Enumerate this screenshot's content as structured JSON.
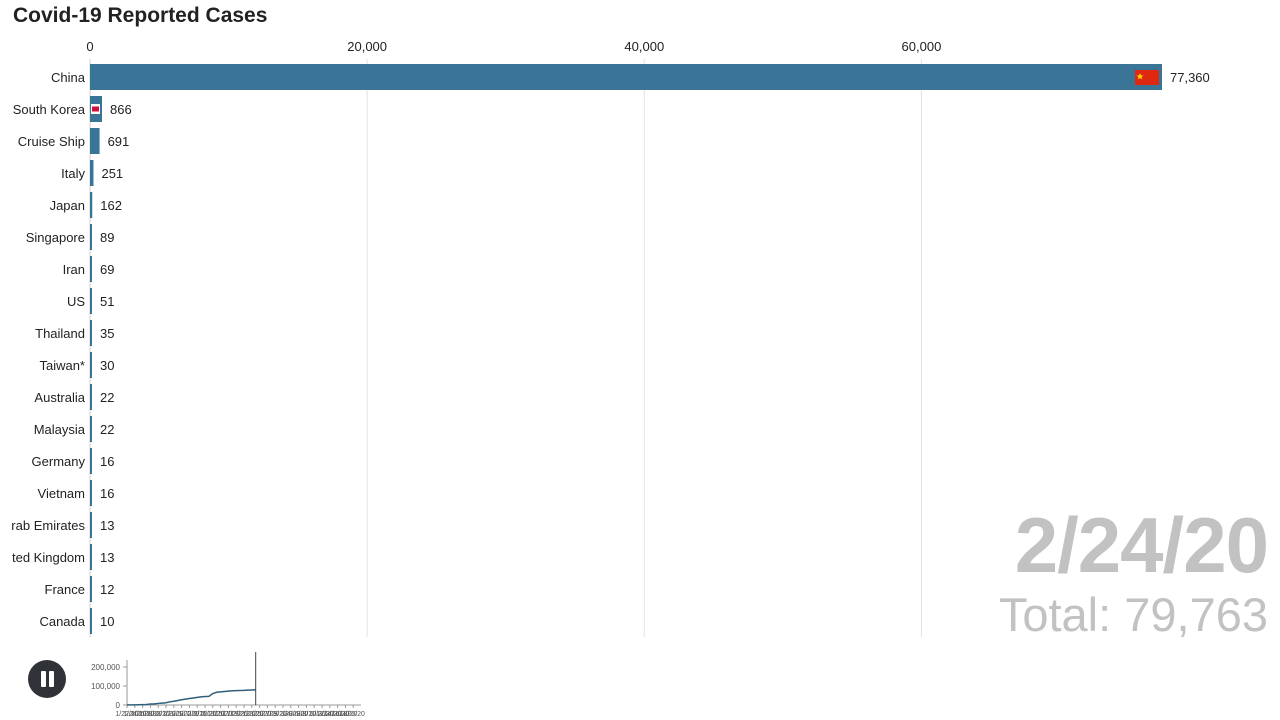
{
  "title": "Covid-19 Reported Cases",
  "current_date": "2/24/20",
  "total_prefix": "Total: ",
  "total_value": "79,763",
  "controls": {
    "play_state": "playing",
    "button_icon": "pause-icon"
  },
  "colors": {
    "bar": "#3a7497",
    "grid": "#e3e3e3",
    "label": "#222222",
    "date": "#c2c2c2",
    "timeline_line": "#2f5f7c"
  },
  "chart_data": {
    "type": "bar",
    "orientation": "horizontal",
    "title": "Covid-19 Reported Cases",
    "xlim": [
      0,
      77360
    ],
    "x_ticks": [
      0,
      20000,
      40000,
      60000
    ],
    "x_tick_labels": [
      "0",
      "20,000",
      "40,000",
      "60,000"
    ],
    "grid": true,
    "categories": [
      "China",
      "South Korea",
      "Cruise Ship",
      "Italy",
      "Japan",
      "Singapore",
      "Iran",
      "US",
      "Thailand",
      "Taiwan*",
      "Australia",
      "Malaysia",
      "Germany",
      "Vietnam",
      "rab Emirates",
      "ted Kingdom",
      "France",
      "Canada"
    ],
    "values": [
      77360,
      866,
      691,
      251,
      162,
      89,
      69,
      51,
      35,
      30,
      22,
      22,
      16,
      16,
      13,
      13,
      12,
      10
    ],
    "value_labels": [
      "77,360",
      "866",
      "691",
      "251",
      "162",
      "89",
      "69",
      "51",
      "35",
      "30",
      "22",
      "22",
      "16",
      "16",
      "13",
      "13",
      "12",
      "10"
    ],
    "flag_markers": {
      "China": "china-flag-icon",
      "South Korea": "south-korea-flag-icon"
    }
  },
  "timeline": {
    "type": "line",
    "y_ticks": [
      0,
      100000,
      200000
    ],
    "y_tick_labels": [
      "0",
      "100,000",
      "200,000"
    ],
    "x_tick_labels": [
      "1/22/20",
      "1/24/20",
      "1/26/20",
      "1/28/20",
      "1/30/20",
      "2/1/20",
      "2/3/20",
      "2/5/20",
      "2/7/20",
      "2/9/20",
      "2/11/20",
      "2/13/20",
      "2/15/20",
      "2/17/20",
      "2/19/20",
      "2/21/20",
      "2/23/20",
      "2/25/20",
      "2/27/20",
      "2/29/20",
      "3/2/20",
      "3/4/20",
      "3/6/20",
      "3/8/20",
      "3/10/20",
      "3/12/20",
      "3/14/20",
      "3/16/20",
      "3/18/20",
      "3/20/20"
    ],
    "first_date": "1/22/20",
    "current_date": "2/24/20",
    "series": [
      {
        "values": [
          555,
          653,
          941,
          1434,
          2118,
          2927,
          5578,
          6166,
          8234,
          9927,
          12038,
          16787,
          19881,
          23892,
          27635,
          30794,
          34391,
          37120,
          40150,
          42762,
          44802,
          45221,
          60368,
          66885,
          69030,
          71224,
          73258,
          75136,
          75639,
          76197,
          76819,
          78572,
          78958,
          79561
        ]
      }
    ]
  }
}
